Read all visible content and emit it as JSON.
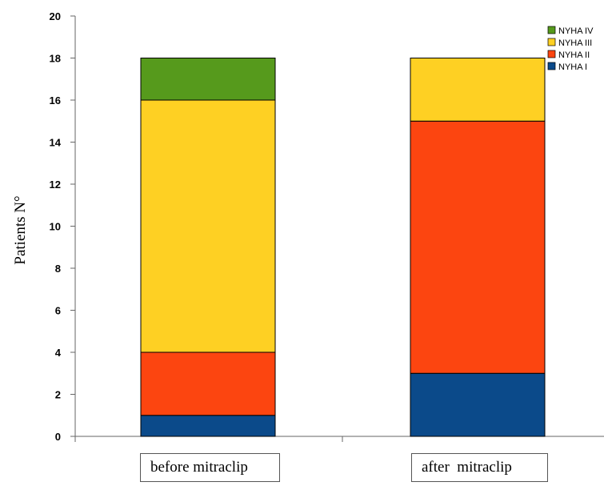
{
  "chart_data": {
    "type": "bar",
    "stacked": true,
    "title": "",
    "xlabel": "",
    "ylabel": "Patients N°",
    "ylim": [
      0,
      20
    ],
    "yticks": [
      "0",
      "2",
      "4",
      "6",
      "8",
      "10",
      "12",
      "14",
      "16",
      "18",
      "20"
    ],
    "grid": false,
    "legend_position": "top-right",
    "categories": [
      "before mitraclip",
      "after  mitraclip"
    ],
    "series": [
      {
        "name": "NYHA I",
        "color": "#0b4a8a",
        "values": [
          1,
          3
        ]
      },
      {
        "name": "NYHA II",
        "color": "#fc4510",
        "values": [
          3,
          12
        ]
      },
      {
        "name": "NYHA III",
        "color": "#fed023",
        "values": [
          12,
          3
        ]
      },
      {
        "name": "NYHA IV",
        "color": "#569a1c",
        "values": [
          2,
          0
        ]
      }
    ]
  }
}
